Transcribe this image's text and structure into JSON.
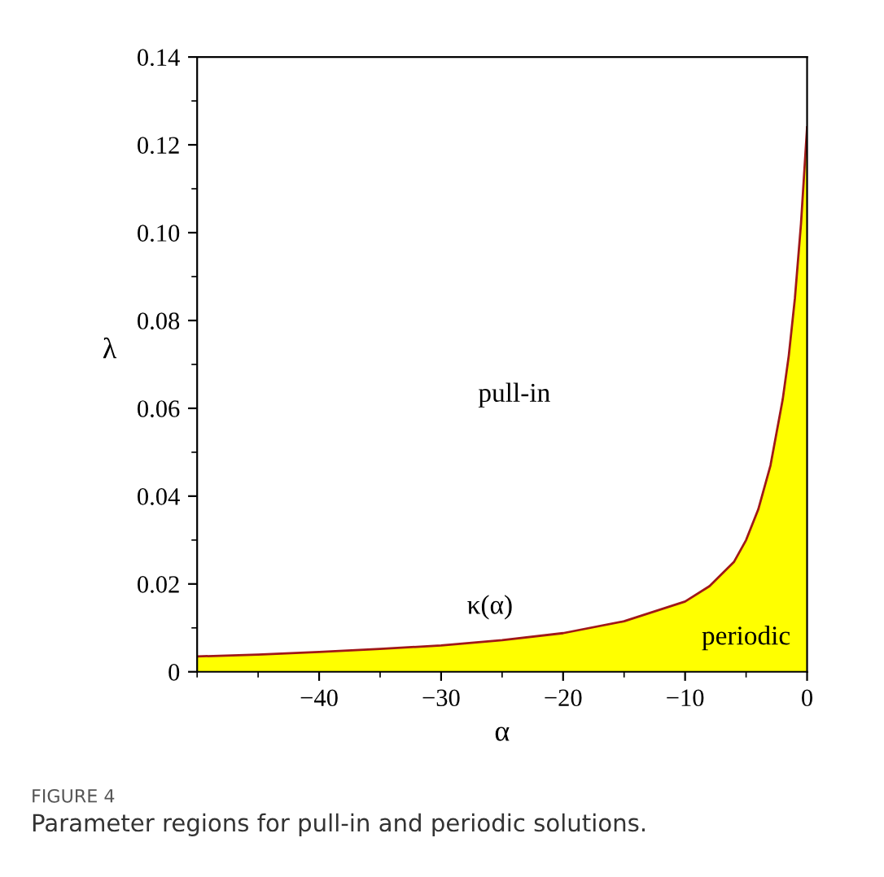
{
  "chart_data": {
    "type": "area",
    "xlabel": "α",
    "ylabel": "λ",
    "x": [
      -50,
      -45,
      -40,
      -35,
      -30,
      -25,
      -20,
      -15,
      -10,
      -8,
      -6,
      -5,
      -4,
      -3,
      -2,
      -1.5,
      -1,
      -0.5,
      0
    ],
    "series": [
      {
        "color": "#ffff00",
        "values": [
          0.0035,
          0.0039,
          0.0045,
          0.0052,
          0.006,
          0.0072,
          0.0088,
          0.0115,
          0.016,
          0.0195,
          0.025,
          0.03,
          0.037,
          0.047,
          0.062,
          0.072,
          0.085,
          0.102,
          0.124
        ]
      }
    ],
    "xlim": [
      -50,
      0
    ],
    "ylim": [
      0,
      0.14
    ],
    "xticks": [
      {
        "value": -40,
        "label": "−40"
      },
      {
        "value": -30,
        "label": "−30"
      },
      {
        "value": -20,
        "label": "−20"
      },
      {
        "value": -10,
        "label": "−10"
      },
      0
    ],
    "yticks": [
      0,
      0.02,
      0.04,
      0.06,
      0.08,
      {
        "value": 0.1,
        "label": "0.10"
      },
      0.12,
      0.14
    ],
    "grid": false,
    "legend": false,
    "annotations": [
      "pull-in",
      "κ(α)",
      "periodic",
      "FIGURE 4",
      "Parameter regions for pull-in and periodic solutions."
    ]
  }
}
